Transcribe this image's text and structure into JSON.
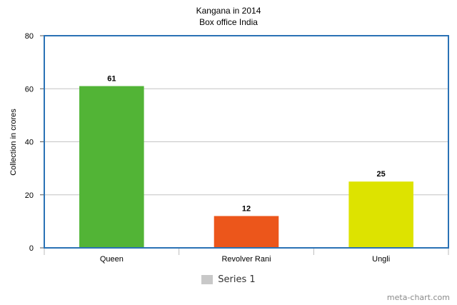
{
  "chart_data": {
    "type": "bar",
    "title": "Kangana in 2014",
    "subtitle": "Box office India",
    "xlabel": "",
    "ylabel": "Collection in crores",
    "categories": [
      "Queen",
      "Revolver Rani",
      "Ungli"
    ],
    "values": [
      61,
      12,
      25
    ],
    "data_labels": [
      "61",
      "12",
      "25"
    ],
    "bar_colors": [
      "#52b436",
      "#ec561b",
      "#dde300"
    ],
    "ylim": [
      0,
      80
    ],
    "yticks": [
      0,
      20,
      40,
      60,
      80
    ],
    "grid": true,
    "legend_position": "bottom",
    "series": [
      {
        "name": "Series 1",
        "values": [
          61,
          12,
          25
        ]
      }
    ]
  },
  "legend": {
    "label": "Series 1",
    "color": "#c8c8c8"
  },
  "watermark": "meta-chart.com",
  "colors": {
    "frame": "#2a72b5",
    "grid": "#c4c4c4"
  }
}
